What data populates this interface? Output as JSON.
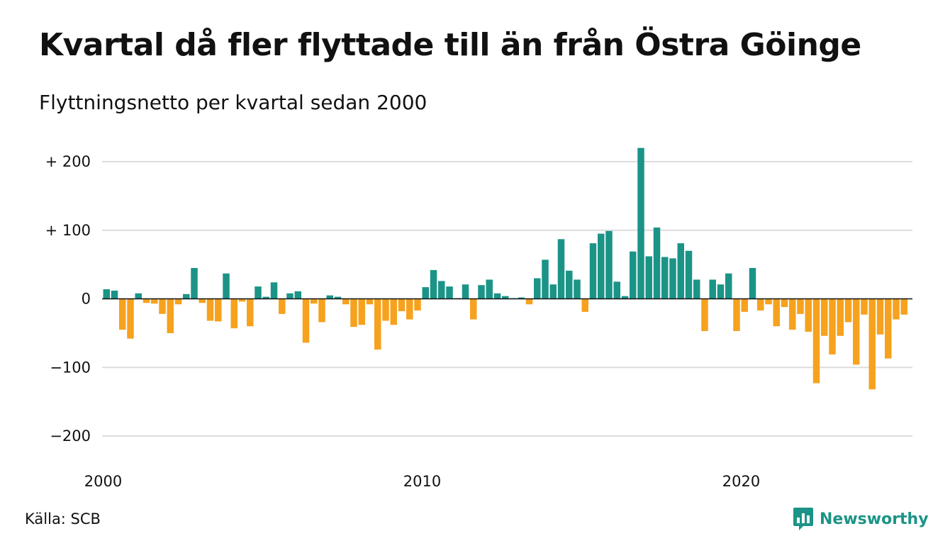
{
  "header": {
    "title": "Kvartal då fler flyttade till än från Östra Göinge",
    "subtitle": "Flyttningsnetto per kvartal sedan 2000"
  },
  "footer": {
    "source": "Källa: SCB",
    "brand": "Newsworthy",
    "brand_icon": "bar-chart-speech-bubble-icon",
    "brand_color": "#1b9487"
  },
  "colors": {
    "positive": "#1b9487",
    "negative": "#f6a21e",
    "grid": "#dddddd",
    "zero_line": "#111111"
  },
  "chart_data": {
    "type": "bar",
    "title": "Kvartal då fler flyttade till än från Östra Göinge",
    "subtitle": "Flyttningsnetto per kvartal sedan 2000",
    "xlabel": "",
    "ylabel": "",
    "ylim": [
      -215,
      225
    ],
    "grid": true,
    "legend": "none",
    "y_ticks": [
      {
        "value": 200,
        "label": "+ 200"
      },
      {
        "value": 100,
        "label": "+ 100"
      },
      {
        "value": 0,
        "label": "0"
      },
      {
        "value": -100,
        "label": "−100"
      },
      {
        "value": -200,
        "label": "−200"
      }
    ],
    "x_ticks": [
      {
        "value": 2000,
        "label": "2000"
      },
      {
        "value": 2010,
        "label": "2010"
      },
      {
        "value": 2020,
        "label": "2020"
      }
    ],
    "x_start": "2000 Q1",
    "x_end": "2025 Q2",
    "values": [
      14,
      12,
      -45,
      -58,
      8,
      -6,
      -7,
      -22,
      -50,
      -8,
      7,
      45,
      -6,
      -32,
      -33,
      37,
      -43,
      -4,
      -40,
      18,
      3,
      24,
      -22,
      8,
      11,
      -64,
      -7,
      -34,
      5,
      3,
      -8,
      -41,
      -38,
      -8,
      -74,
      -32,
      -38,
      -18,
      -30,
      -17,
      17,
      42,
      26,
      18,
      1,
      21,
      -30,
      20,
      28,
      8,
      4,
      1,
      2,
      -8,
      30,
      57,
      21,
      87,
      41,
      28,
      -19,
      81,
      95,
      99,
      25,
      4,
      69,
      220,
      62,
      104,
      61,
      59,
      81,
      70,
      28,
      -47,
      28,
      21,
      37,
      -47,
      -19,
      45,
      -17,
      -8,
      -40,
      -12,
      -45,
      -22,
      -48,
      -123,
      -54,
      -81,
      -54,
      -34,
      -96,
      -23,
      -132,
      -52,
      -87,
      -30,
      -23
    ]
  }
}
